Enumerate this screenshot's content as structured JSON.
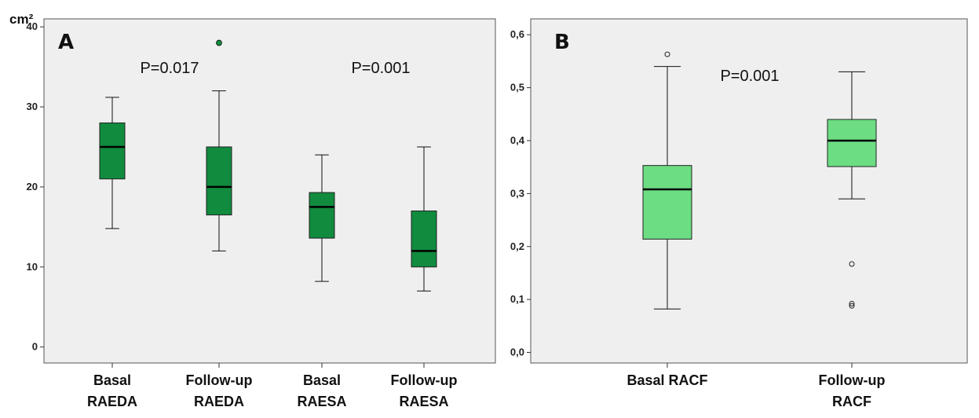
{
  "chart_data": [
    {
      "type": "box",
      "panel_label": "A",
      "ylabel": "cm²",
      "ylim": [
        -2,
        41
      ],
      "yticks": [
        0,
        10,
        20,
        30,
        40
      ],
      "box_color": "#118b3e",
      "outlier_style": "filled",
      "background": "#efefef",
      "annotations": [
        {
          "text": "P=0.017",
          "between": [
            0,
            1
          ]
        },
        {
          "text": "P=0.001",
          "between": [
            2,
            3
          ]
        }
      ],
      "categories": [
        {
          "label": [
            "Basal",
            "RAEDA"
          ],
          "whisker_low": 14.8,
          "q1": 21,
          "median": 25,
          "q3": 28,
          "whisker_high": 31.2,
          "outliers": []
        },
        {
          "label": [
            "Follow-up",
            "RAEDA"
          ],
          "whisker_low": 12,
          "q1": 16.5,
          "median": 20,
          "q3": 25,
          "whisker_high": 32,
          "outliers": [
            38
          ]
        },
        {
          "label": [
            "Basal",
            "RAESA"
          ],
          "whisker_low": 8.2,
          "q1": 13.6,
          "median": 17.5,
          "q3": 19.3,
          "whisker_high": 24,
          "outliers": []
        },
        {
          "label": [
            "Follow-up",
            "RAESA"
          ],
          "whisker_low": 7,
          "q1": 10,
          "median": 12,
          "q3": 17,
          "whisker_high": 25,
          "outliers": []
        }
      ]
    },
    {
      "type": "box",
      "panel_label": "B",
      "ylabel": "",
      "ylim": [
        -0.02,
        0.63
      ],
      "yticks": [
        0.0,
        0.1,
        0.2,
        0.3,
        0.4,
        0.5,
        0.6
      ],
      "ytick_labels": [
        "0,0",
        "0,1",
        "0,2",
        "0,3",
        "0,4",
        "0,5",
        "0,6"
      ],
      "box_color": "#6cdd82",
      "outlier_style": "open",
      "background": "#efefef",
      "annotations": [
        {
          "text": "P=0.001",
          "between": [
            0,
            1
          ]
        }
      ],
      "categories": [
        {
          "label": [
            "Basal RACF"
          ],
          "whisker_low": 0.082,
          "q1": 0.214,
          "median": 0.308,
          "q3": 0.353,
          "whisker_high": 0.54,
          "outliers": [
            0.563
          ]
        },
        {
          "label": [
            "Follow-up",
            "RACF"
          ],
          "whisker_low": 0.29,
          "q1": 0.351,
          "median": 0.4,
          "q3": 0.44,
          "whisker_high": 0.53,
          "outliers": [
            0.167,
            0.092,
            0.088
          ]
        }
      ]
    }
  ]
}
